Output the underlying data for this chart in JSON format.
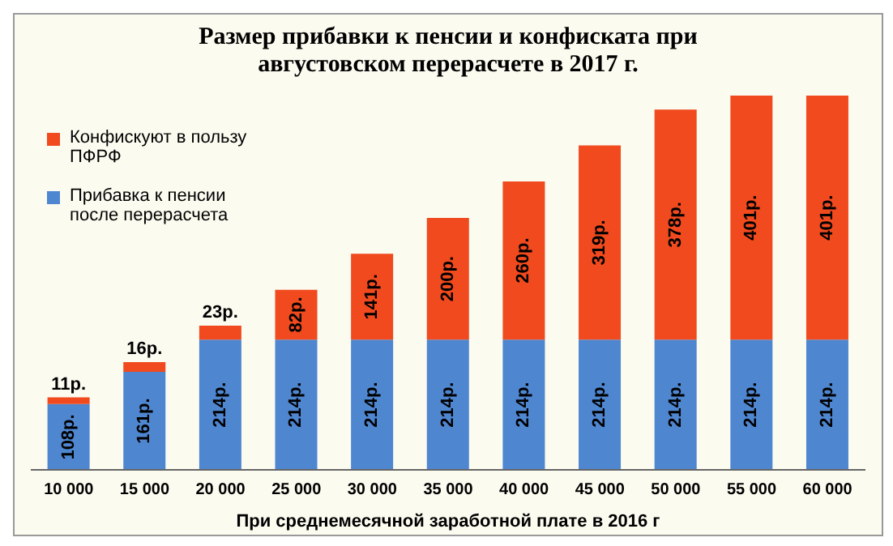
{
  "chart_data": {
    "type": "bar",
    "title": "Размер прибавки к пенсии и конфиската при августовском перерасчете в 2017 г.",
    "xlabel": "При среднемесячной  заработной плате в 2016 г",
    "categories": [
      "10 000",
      "15 000",
      "20 000",
      "25 000",
      "30 000",
      "35 000",
      "40 000",
      "45 000",
      "50 000",
      "55 000",
      "60 000"
    ],
    "stacked": true,
    "legend": "top left",
    "series": [
      {
        "name": "Прибавка  к пенсии после перерасчета",
        "color": "#4f86d0",
        "values": [
          108,
          161,
          214,
          214,
          214,
          214,
          214,
          214,
          214,
          214,
          214
        ],
        "value_labels": [
          "108р.",
          "161р.",
          "214р.",
          "214р.",
          "214р.",
          "214р.",
          "214р.",
          "214р.",
          "214р.",
          "214р.",
          "214р."
        ]
      },
      {
        "name": "Конфискуют  в пользу ПФРФ",
        "color": "#f04a1e",
        "values": [
          11,
          16,
          23,
          82,
          141,
          200,
          260,
          319,
          378,
          401,
          401
        ],
        "value_labels": [
          "11р.",
          "16р.",
          "23р.",
          "82р.",
          "141р.",
          "200р.",
          "260р.",
          "319р.",
          "378р.",
          "401р.",
          "401р."
        ]
      }
    ]
  }
}
